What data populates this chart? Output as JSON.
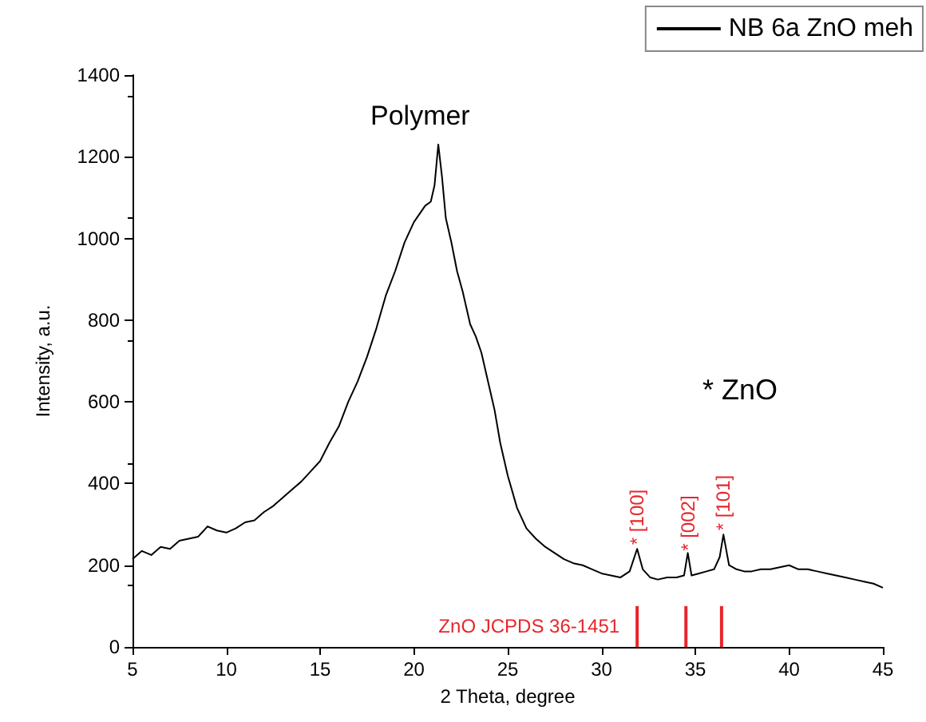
{
  "chart_data": {
    "type": "line",
    "xlabel": "2 Theta, degree",
    "ylabel": "Intensity, a.u.",
    "xlim": [
      5,
      45
    ],
    "xticks": [
      5,
      10,
      15,
      20,
      25,
      30,
      35,
      40,
      45
    ],
    "ylim": [
      0,
      1400
    ],
    "yticks": [
      0,
      200,
      400,
      600,
      800,
      1000,
      1200,
      1400
    ],
    "grid": false,
    "legend": "top right",
    "marker": "none",
    "line_style": "solid",
    "series": [
      {
        "name": "NB 6a ZnO meh",
        "color": "#000000",
        "x": [
          5,
          5.5,
          6,
          6.5,
          7,
          7.5,
          8,
          8.5,
          9,
          9.5,
          10,
          10.5,
          11,
          11.5,
          12,
          12.5,
          13,
          13.5,
          14,
          14.5,
          15,
          15.5,
          16,
          16.5,
          17,
          17.5,
          18,
          18.5,
          19,
          19.5,
          20,
          20.3,
          20.6,
          20.9,
          21.1,
          21.3,
          21.5,
          21.7,
          22,
          22.3,
          22.6,
          23,
          23.3,
          23.6,
          24,
          24.3,
          24.6,
          25,
          25.5,
          26,
          26.5,
          27,
          27.5,
          28,
          28.5,
          29,
          29.5,
          30,
          30.5,
          31,
          31.5,
          31.9,
          32.2,
          32.6,
          33,
          33.5,
          34,
          34.4,
          34.6,
          34.8,
          35.2,
          35.6,
          36,
          36.3,
          36.5,
          36.8,
          37.2,
          37.6,
          38,
          38.5,
          39,
          39.5,
          40,
          40.5,
          41,
          41.5,
          42,
          42.5,
          43,
          43.5,
          44,
          44.5,
          45
        ],
        "values": [
          215,
          235,
          225,
          245,
          240,
          260,
          265,
          270,
          295,
          285,
          280,
          290,
          305,
          310,
          330,
          345,
          365,
          385,
          405,
          430,
          455,
          500,
          540,
          600,
          650,
          710,
          780,
          860,
          920,
          990,
          1040,
          1060,
          1080,
          1090,
          1130,
          1230,
          1150,
          1050,
          990,
          920,
          870,
          790,
          760,
          720,
          640,
          580,
          500,
          420,
          340,
          290,
          265,
          245,
          230,
          215,
          205,
          200,
          190,
          180,
          175,
          170,
          185,
          240,
          190,
          170,
          165,
          170,
          170,
          175,
          230,
          175,
          180,
          185,
          190,
          220,
          275,
          200,
          190,
          185,
          185,
          190,
          190,
          195,
          200,
          190,
          190,
          185,
          180,
          175,
          170,
          165,
          160,
          155,
          145
        ]
      },
      {
        "name": "ZnO JCPDS 36-1451",
        "type": "bar",
        "color": "#e8262b",
        "x": [
          31.9,
          34.5,
          36.4
        ],
        "values": [
          100,
          100,
          100
        ]
      }
    ],
    "annotations": [
      "Polymer",
      {
        "text": "* [100]",
        "x": 31.9,
        "y": 250
      },
      {
        "text": "* [002]",
        "x": 34.6,
        "y": 235
      },
      {
        "text": "* [101]",
        "x": 36.5,
        "y": 285
      },
      "* ZnO"
    ]
  }
}
